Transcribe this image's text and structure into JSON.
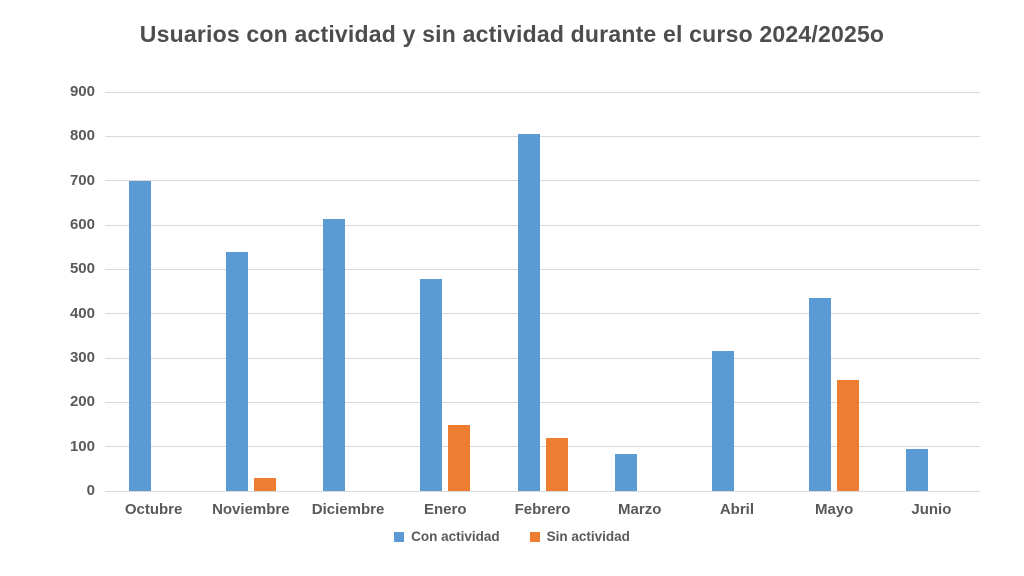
{
  "title": "Usuarios con actividad y sin actividad durante el curso 2024/2025o",
  "colors": {
    "con_actividad": "#5B9BD5",
    "sin_actividad": "#ED7D31",
    "gridline": "#D9D9D9",
    "axis_text": "#595959",
    "title_text": "#4D4D4D",
    "background": "#FFFFFF"
  },
  "legend": {
    "items": [
      {
        "label": "Con actividad",
        "color": "#5B9BD5"
      },
      {
        "label": "Sin actividad",
        "color": "#ED7D31"
      }
    ],
    "position": "bottom-center"
  },
  "y_axis": {
    "min": 0,
    "max": 900,
    "step": 100,
    "tick_labels": [
      "0",
      "100",
      "200",
      "300",
      "400",
      "500",
      "600",
      "700",
      "800",
      "900"
    ]
  },
  "chart_data": {
    "type": "bar",
    "title": "Usuarios con actividad y sin actividad durante el curso 2024/2025o",
    "categories": [
      "Octubre",
      "Noviembre",
      "Diciembre",
      "Enero",
      "Febrero",
      "Marzo",
      "Abril",
      "Mayo",
      "Junio"
    ],
    "series": [
      {
        "name": "Con actividad",
        "color": "#5B9BD5",
        "values": [
          700,
          540,
          613,
          478,
          805,
          83,
          316,
          435,
          95
        ]
      },
      {
        "name": "Sin actividad",
        "color": "#ED7D31",
        "values": [
          0,
          30,
          0,
          150,
          120,
          0,
          0,
          250,
          0
        ]
      }
    ],
    "xlabel": "",
    "ylabel": "",
    "ylim": [
      0,
      900
    ],
    "grid": true,
    "legend_position": "bottom"
  }
}
